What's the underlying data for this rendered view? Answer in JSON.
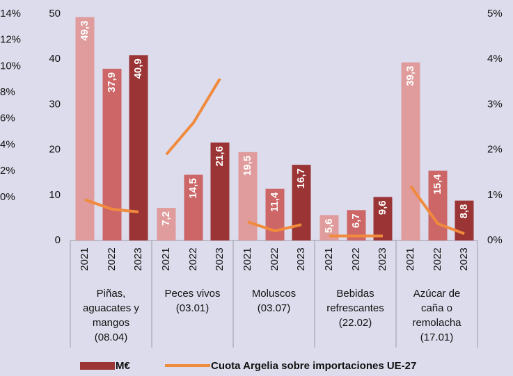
{
  "chart_data": {
    "type": "bar",
    "categories": [
      [
        "Piñas,",
        "aguacates y",
        "mangos",
        "(08.04)"
      ],
      [
        "Peces vivos",
        "(03.01)"
      ],
      [
        "Moluscos",
        "(03.07)"
      ],
      [
        "Bebidas",
        "refrescantes",
        "(22.02)"
      ],
      [
        "Azúcar de",
        "caña o",
        "remolacha",
        "(17.01)"
      ]
    ],
    "years": [
      "2021",
      "2022",
      "2023"
    ],
    "series": [
      {
        "name": "M€",
        "type": "bar",
        "color": "#9b3434",
        "year_colors": [
          "#e09c9c",
          "#cd6666",
          "#9b3434"
        ],
        "values": [
          [
            49.3,
            37.9,
            40.9
          ],
          [
            7.2,
            14.5,
            21.6
          ],
          [
            19.5,
            11.4,
            16.7
          ],
          [
            5.6,
            6.7,
            9.6
          ],
          [
            39.3,
            15.4,
            8.8
          ]
        ],
        "value_labels": [
          [
            "49,3",
            "37,9",
            "40,9"
          ],
          [
            "7,2",
            "14,5",
            "21,6"
          ],
          [
            "19,5",
            "11,4",
            "16,7"
          ],
          [
            "5,6",
            "6,7",
            "9,6"
          ],
          [
            "39,3",
            "15,4",
            "8,8"
          ]
        ]
      },
      {
        "name": "Cuota Argelia sobre importaciones UE-27",
        "type": "line",
        "color": "#f08a3c",
        "axis": "y2",
        "values": [
          [
            0.9,
            0.69,
            0.63
          ],
          [
            1.9,
            2.6,
            3.57
          ],
          [
            0.41,
            0.21,
            0.35
          ],
          [
            0.1,
            0.1,
            0.1
          ],
          [
            1.2,
            0.37,
            0.15
          ]
        ]
      }
    ],
    "ylim": [
      0,
      50
    ],
    "yticks": [
      0,
      10,
      20,
      30,
      40,
      50
    ],
    "y2lim": [
      0,
      5
    ],
    "y2ticks": [
      {
        "value": 0,
        "label": "0%"
      },
      {
        "value": 1,
        "label": "1%"
      },
      {
        "value": 2,
        "label": "2%"
      },
      {
        "value": 3,
        "label": "3%"
      },
      {
        "value": 4,
        "label": "4%"
      },
      {
        "value": 5,
        "label": "5%"
      }
    ],
    "y3lim": [
      -3.3,
      14
    ],
    "y3ticks": [
      {
        "value": 0,
        "label": "0%"
      },
      {
        "value": 2,
        "label": "2%"
      },
      {
        "value": 4,
        "label": "4%"
      },
      {
        "value": 6,
        "label": "6%"
      },
      {
        "value": 8,
        "label": "8%"
      },
      {
        "value": 10,
        "label": "10%"
      },
      {
        "value": 12,
        "label": "12%"
      },
      {
        "value": 14,
        "label": "14%"
      }
    ],
    "legend": "bottom"
  }
}
